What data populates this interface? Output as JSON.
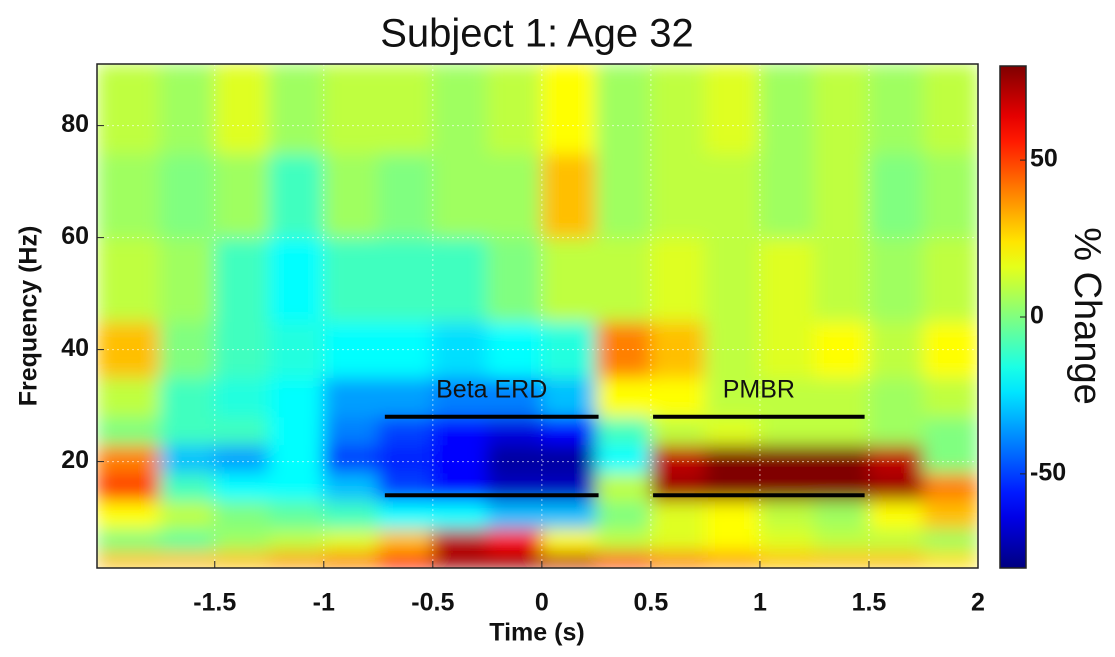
{
  "chart_data": {
    "type": "heatmap",
    "title": "Subject 1:  Age 32",
    "xlabel": "Time (s)",
    "ylabel": "Frequency (Hz)",
    "colorbar_label": "% Change",
    "colormap": "jet",
    "grid": true,
    "xlim": [
      -2.04,
      2
    ],
    "xticks": [
      -1.5,
      -1,
      -0.5,
      0,
      0.5,
      1,
      1.5,
      2
    ],
    "ylim": [
      1,
      91
    ],
    "yticks": [
      20,
      40,
      60,
      80
    ],
    "clim": [
      -80,
      80
    ],
    "cticks": [
      -50,
      0,
      50
    ],
    "x_edges": [
      -2.04,
      -1.75,
      -1.5,
      -1.25,
      -1,
      -0.75,
      -0.5,
      -0.25,
      0,
      0.25,
      0.5,
      0.75,
      1,
      1.25,
      1.5,
      1.75,
      2
    ],
    "y_edges": [
      1,
      4,
      8,
      13,
      18,
      23,
      28,
      35,
      45,
      60,
      75,
      91
    ],
    "z": [
      [
        30,
        30,
        30,
        35,
        40,
        60,
        75,
        75,
        70,
        50,
        40,
        35,
        30,
        30,
        30,
        25
      ],
      [
        0,
        -5,
        5,
        10,
        15,
        30,
        70,
        60,
        20,
        10,
        15,
        20,
        15,
        10,
        10,
        5
      ],
      [
        20,
        10,
        0,
        -5,
        -10,
        -20,
        -20,
        -30,
        -30,
        0,
        15,
        20,
        10,
        5,
        20,
        30
      ],
      [
        50,
        -10,
        -20,
        -20,
        -30,
        -50,
        -60,
        -70,
        -70,
        10,
        75,
        80,
        80,
        80,
        75,
        40
      ],
      [
        40,
        -30,
        -35,
        -20,
        -50,
        -55,
        -60,
        -75,
        -75,
        -20,
        70,
        80,
        80,
        80,
        70,
        0
      ],
      [
        0,
        -10,
        -10,
        -20,
        -40,
        -50,
        -60,
        -65,
        -60,
        -10,
        10,
        15,
        10,
        10,
        5,
        0
      ],
      [
        10,
        -10,
        -15,
        -20,
        -35,
        -35,
        -40,
        -40,
        -30,
        20,
        20,
        10,
        10,
        10,
        5,
        10
      ],
      [
        30,
        0,
        -10,
        -15,
        -20,
        -20,
        -25,
        -20,
        -15,
        40,
        30,
        10,
        15,
        20,
        10,
        20
      ],
      [
        10,
        5,
        -10,
        -20,
        -10,
        -10,
        -10,
        0,
        10,
        10,
        15,
        10,
        15,
        10,
        5,
        10
      ],
      [
        5,
        0,
        5,
        -10,
        5,
        0,
        5,
        5,
        30,
        5,
        10,
        10,
        5,
        10,
        0,
        5
      ],
      [
        10,
        5,
        15,
        5,
        10,
        10,
        5,
        10,
        20,
        5,
        10,
        15,
        5,
        10,
        5,
        10
      ]
    ],
    "bands": [
      {
        "label": "Beta ERD",
        "x": [
          -0.72,
          0.26
        ],
        "y": [
          14,
          28
        ]
      },
      {
        "label": "PMBR",
        "x": [
          0.51,
          1.48
        ],
        "y": [
          14,
          28
        ]
      }
    ]
  }
}
